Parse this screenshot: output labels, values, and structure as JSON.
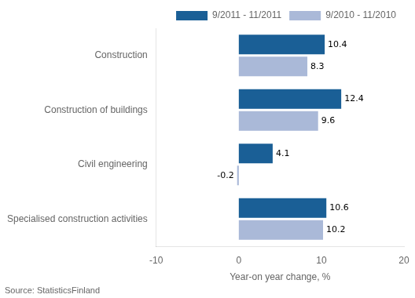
{
  "chart_data": {
    "type": "bar",
    "orientation": "horizontal",
    "categories": [
      "Specialised construction activities",
      "Civil engineering",
      "Construction of buildings",
      "Construction"
    ],
    "series": [
      {
        "name": "9/2011 - 11/2011",
        "color": "#1a5f96",
        "values": [
          10.6,
          4.1,
          12.4,
          10.4
        ]
      },
      {
        "name": "9/2010 - 11/2010",
        "color": "#aab9d8",
        "values": [
          10.2,
          -0.2,
          9.6,
          8.3
        ]
      }
    ],
    "xlabel": "Year-on year change, %",
    "xlim": [
      -10,
      20
    ],
    "xticks": [
      -10,
      0,
      10,
      20
    ],
    "grid": false,
    "legend": "upper right",
    "data_labels": true,
    "annotations": [
      "Source: StatisticsFinland"
    ]
  }
}
